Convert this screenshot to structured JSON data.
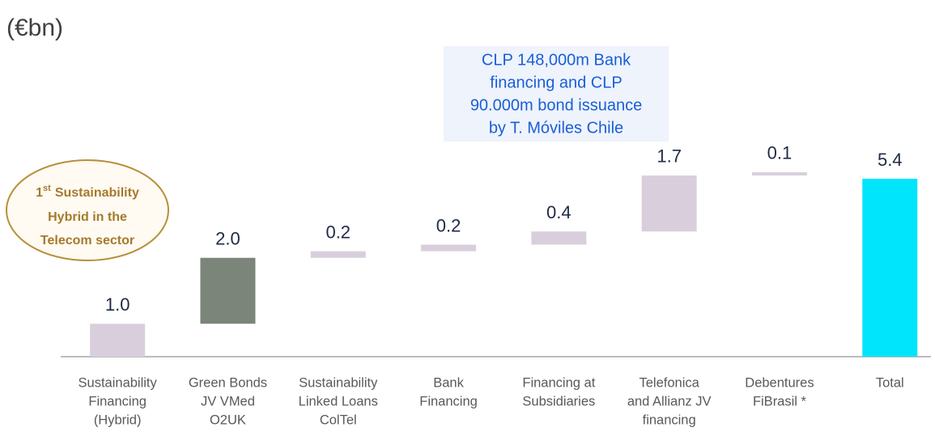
{
  "chart_data": {
    "type": "waterfall",
    "unit_label": "(€bn)",
    "categories": [
      [
        "Sustainability",
        "Financing",
        "(Hybrid)"
      ],
      [
        "Green Bonds",
        "JV VMed",
        "O2UK"
      ],
      [
        "Sustainability",
        "Linked Loans",
        "ColTel"
      ],
      [
        "Bank",
        "Financing"
      ],
      [
        "Financing at",
        "Subsidiaries"
      ],
      [
        "Telefonica",
        "and Allianz JV",
        "financing"
      ],
      [
        "Debentures",
        "FiBrasil *"
      ],
      [
        "Total"
      ]
    ],
    "values": [
      1.0,
      2.0,
      0.2,
      0.2,
      0.4,
      1.7,
      0.1,
      5.4
    ],
    "value_labels": [
      "1.0",
      "2.0",
      "0.2",
      "0.2",
      "0.4",
      "1.7",
      "0.1",
      "5.4"
    ],
    "kinds": [
      "step",
      "step",
      "step",
      "step",
      "step",
      "step",
      "step",
      "total"
    ],
    "colors": [
      "#d9cfdc",
      "#7b8579",
      "#d9cfdc",
      "#d9cfdc",
      "#d9cfdc",
      "#d9cfdc",
      "#d9cfdc",
      "#00e5fb"
    ],
    "badge": {
      "ordinal": "1",
      "ordinal_suffix": "st",
      "lines": [
        "Sustainability",
        "Hybrid  in the",
        "Telecom sector"
      ]
    },
    "callout": [
      "CLP 148,000m Bank",
      "financing and CLP",
      "90.000m bond issuance",
      "by T. Móviles Chile"
    ]
  }
}
